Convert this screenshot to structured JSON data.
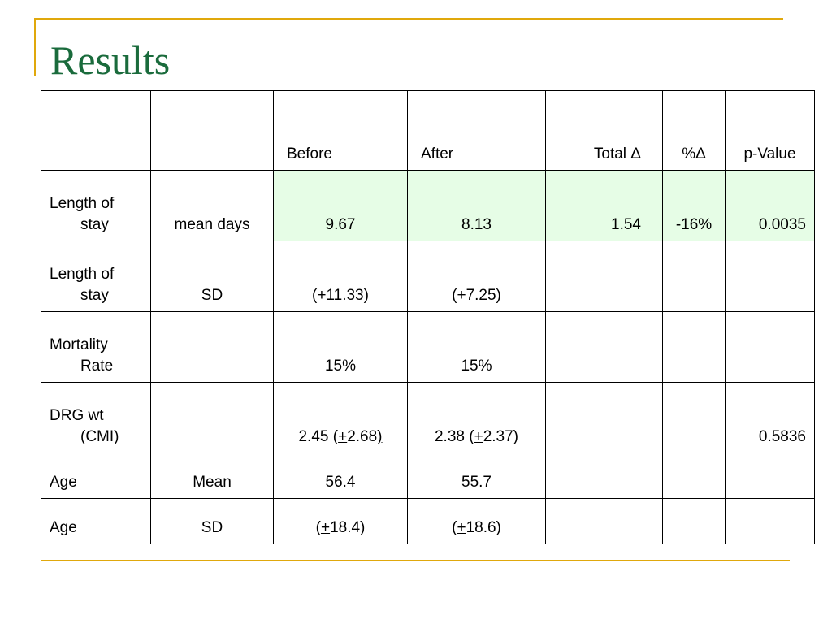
{
  "title": "Results",
  "accent_color": "#e0a80c",
  "title_color": "#1a6b3c",
  "highlight_color": "#e6fde6",
  "table": {
    "headers": [
      "",
      "",
      "Before",
      "After",
      "Total Δ",
      "%Δ",
      "p-Value"
    ],
    "rows": [
      {
        "label_line1": "Length of",
        "label_line2": "stay",
        "measure": "mean days",
        "before": "9.67",
        "after": "8.13",
        "total": "1.54",
        "pct": "-16%",
        "p": "0.0035"
      },
      {
        "label_line1": "Length of",
        "label_line2": "stay",
        "measure": "SD",
        "before_pre": "(",
        "before_pm": "+",
        "before_val": "11.33)",
        "after_pre": "(",
        "after_pm": "+",
        "after_val": "7.25)",
        "total": "",
        "pct": "",
        "p": ""
      },
      {
        "label_line1": "Mortality",
        "label_line2": "Rate",
        "measure": "",
        "before": "15%",
        "after": "15%",
        "total": "",
        "pct": "",
        "p": ""
      },
      {
        "label_line1": "DRG wt",
        "label_line2": "(CMI)",
        "measure": "",
        "before_pre": "2.45 (",
        "before_pm": "+",
        "before_val": "2.68",
        "before_close": ")",
        "after_pre": "2.38 (",
        "after_pm": "+",
        "after_val": "2.37",
        "after_close": ")",
        "total": "",
        "pct": "",
        "p": "0.5836"
      },
      {
        "label": "Age",
        "measure": "Mean",
        "before": "56.4",
        "after": "55.7",
        "total": "",
        "pct": "",
        "p": ""
      },
      {
        "label": "Age",
        "measure": "SD",
        "before_pre": "(",
        "before_pm": "+",
        "before_val": "18.4)",
        "after_pre": "(",
        "after_pm": "+",
        "after_val": "18.6)",
        "total": "",
        "pct": "",
        "p": ""
      }
    ]
  }
}
